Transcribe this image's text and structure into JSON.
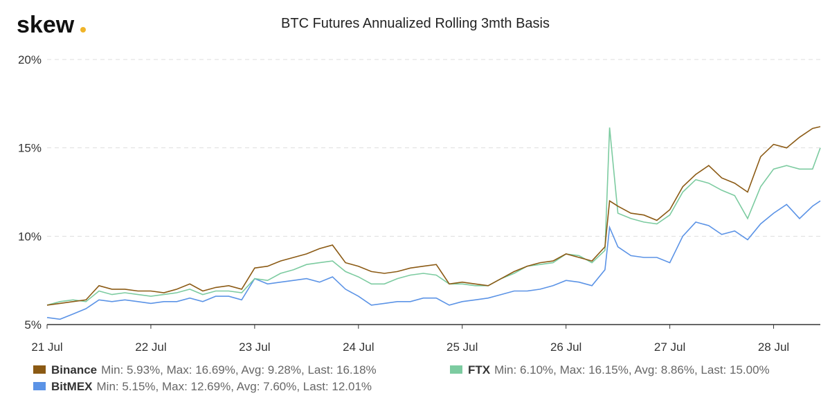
{
  "logo": "skew",
  "chart_data": {
    "type": "line",
    "title": "BTC Futures Annualized Rolling 3mth Basis",
    "x": [
      0,
      0.125,
      0.25,
      0.375,
      0.5,
      0.625,
      0.75,
      0.875,
      1,
      1.125,
      1.25,
      1.375,
      1.5,
      1.625,
      1.75,
      1.875,
      2,
      2.125,
      2.25,
      2.375,
      2.5,
      2.625,
      2.75,
      2.875,
      3,
      3.125,
      3.25,
      3.375,
      3.5,
      3.625,
      3.75,
      3.875,
      4,
      4.125,
      4.25,
      4.375,
      4.5,
      4.625,
      4.75,
      4.875,
      5,
      5.125,
      5.25,
      5.375,
      5.42,
      5.5,
      5.625,
      5.75,
      5.875,
      6,
      6.125,
      6.25,
      6.375,
      6.5,
      6.625,
      6.75,
      6.875,
      7,
      7.125,
      7.25,
      7.375,
      7.45
    ],
    "xlim": [
      0,
      7.45
    ],
    "xticks": [
      {
        "value": 0,
        "label": "21 Jul"
      },
      {
        "value": 1,
        "label": "22 Jul"
      },
      {
        "value": 2,
        "label": "23 Jul"
      },
      {
        "value": 3,
        "label": "24 Jul"
      },
      {
        "value": 4,
        "label": "25 Jul"
      },
      {
        "value": 5,
        "label": "26 Jul"
      },
      {
        "value": 6,
        "label": "27 Jul"
      },
      {
        "value": 7,
        "label": "28 Jul"
      }
    ],
    "ylim": [
      5,
      20
    ],
    "yticks": [
      {
        "value": 5,
        "label": "5%"
      },
      {
        "value": 10,
        "label": "10%"
      },
      {
        "value": 15,
        "label": "15%"
      },
      {
        "value": 20,
        "label": "20%"
      }
    ],
    "grid": true,
    "series": [
      {
        "name": "Binance",
        "stats": "Min: 5.93%, Max: 16.69%, Avg: 9.28%, Last: 16.18%",
        "color": "#8b5a14",
        "values": [
          6.1,
          6.2,
          6.3,
          6.4,
          7.2,
          7.0,
          7.0,
          6.9,
          6.9,
          6.8,
          7.0,
          7.3,
          6.9,
          7.1,
          7.2,
          7.0,
          8.2,
          8.3,
          8.6,
          8.8,
          9.0,
          9.3,
          9.5,
          8.5,
          8.3,
          8.0,
          7.9,
          8.0,
          8.2,
          8.3,
          8.4,
          7.3,
          7.4,
          7.3,
          7.2,
          7.6,
          8.0,
          8.3,
          8.5,
          8.6,
          9.0,
          8.8,
          8.6,
          9.4,
          12.0,
          11.7,
          11.3,
          11.2,
          10.9,
          11.5,
          12.8,
          13.5,
          14.0,
          13.3,
          13.0,
          12.5,
          14.5,
          15.2,
          15.0,
          15.6,
          16.1,
          16.2
        ]
      },
      {
        "name": "FTX",
        "stats": "Min: 6.10%, Max: 16.15%, Avg: 8.86%, Last: 15.00%",
        "color": "#7ccba0",
        "values": [
          6.1,
          6.3,
          6.4,
          6.3,
          6.9,
          6.7,
          6.8,
          6.7,
          6.6,
          6.7,
          6.8,
          7.0,
          6.7,
          6.9,
          6.9,
          6.8,
          7.6,
          7.5,
          7.9,
          8.1,
          8.4,
          8.5,
          8.6,
          8.0,
          7.7,
          7.3,
          7.3,
          7.6,
          7.8,
          7.9,
          7.8,
          7.3,
          7.3,
          7.2,
          7.2,
          7.6,
          7.9,
          8.3,
          8.4,
          8.5,
          9.0,
          8.9,
          8.5,
          9.2,
          16.15,
          11.3,
          11.0,
          10.8,
          10.7,
          11.2,
          12.5,
          13.2,
          13.0,
          12.6,
          12.3,
          11.0,
          12.8,
          13.8,
          14.0,
          13.8,
          13.8,
          15.0
        ]
      },
      {
        "name": "BitMEX",
        "stats": "Min: 5.15%, Max: 12.69%, Avg: 7.60%, Last: 12.01%",
        "color": "#5b93e6",
        "values": [
          5.4,
          5.3,
          5.6,
          5.9,
          6.4,
          6.3,
          6.4,
          6.3,
          6.2,
          6.3,
          6.3,
          6.5,
          6.3,
          6.6,
          6.6,
          6.4,
          7.6,
          7.3,
          7.4,
          7.5,
          7.6,
          7.4,
          7.7,
          7.0,
          6.6,
          6.1,
          6.2,
          6.3,
          6.3,
          6.5,
          6.5,
          6.1,
          6.3,
          6.4,
          6.5,
          6.7,
          6.9,
          6.9,
          7.0,
          7.2,
          7.5,
          7.4,
          7.2,
          8.1,
          10.5,
          9.4,
          8.9,
          8.8,
          8.8,
          8.5,
          10.0,
          10.8,
          10.6,
          10.1,
          10.3,
          9.8,
          10.7,
          11.3,
          11.8,
          11.0,
          11.7,
          12.0
        ]
      }
    ]
  }
}
